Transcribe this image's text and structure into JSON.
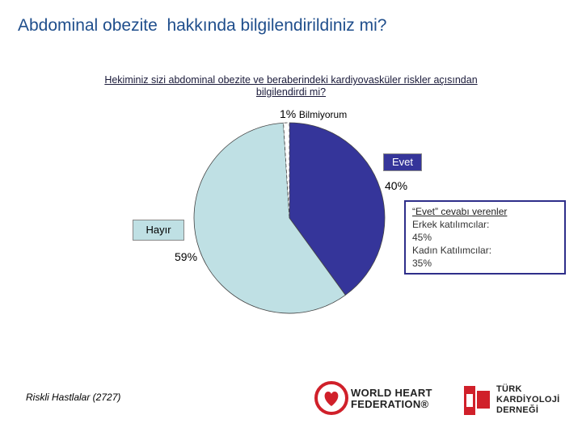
{
  "title": "Abdominal obezite  hakkında bilgilendirildiniz mi?",
  "question": "Hekiminiz sizi abdominal obezite ve beraberindeki kardiyovasküler riskler açısından bilgilendirdi mi?",
  "chart_data": {
    "type": "pie",
    "slices": [
      {
        "name": "Evet",
        "value": 40,
        "label": "40%",
        "color": "#35359a"
      },
      {
        "name": "Hayır",
        "value": 59,
        "label": "59%",
        "color": "#bfe0e4"
      },
      {
        "name": "Bilmiyorum",
        "value": 1,
        "label": "1%",
        "color": "#ffffff"
      }
    ]
  },
  "labels": {
    "evet_pct": "40%",
    "evet_name": "Evet",
    "hayir_pct": "59%",
    "hayir_name": "Hayır",
    "bilmiyorum_pct": "1%",
    "bilmiyorum_name": "Bilmiyorum"
  },
  "note": {
    "heading": "“Evet” cevabı verenler",
    "line1": "Erkek katılımcılar:",
    "line2": "45%",
    "line3": "Kadın Katılımcılar:",
    "line4": "35%"
  },
  "footer": "Riskli Hastlalar (2727)",
  "logos": {
    "whf_line1": "WORLD HEART",
    "whf_line2": "FEDERATION®",
    "tkd_line1": "TÜRK",
    "tkd_line2": "KARDİYOLOJİ",
    "tkd_line3": "DERNEĞİ",
    "whf_color": "#d0202a",
    "tkd_color": "#d0202a"
  }
}
